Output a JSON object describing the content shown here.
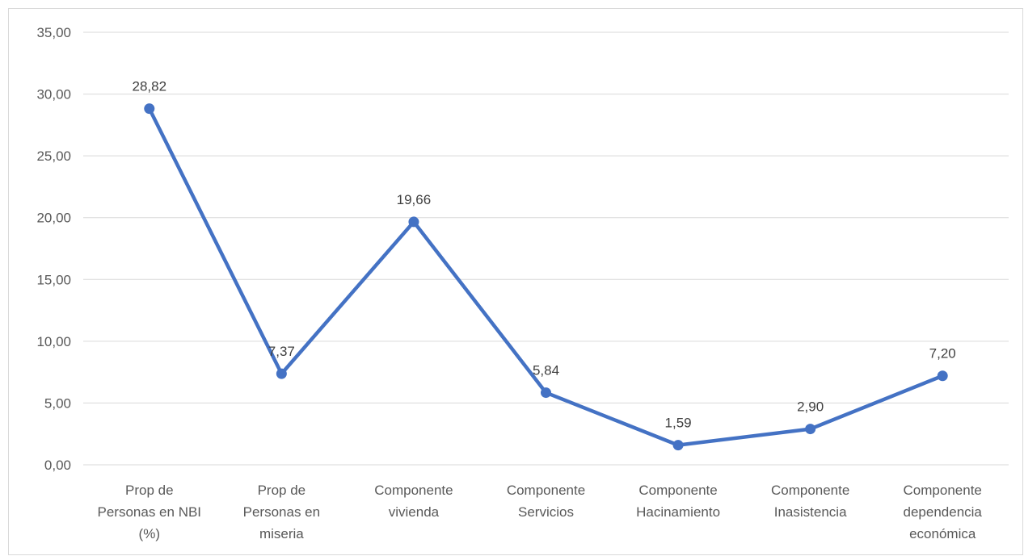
{
  "chart_data": {
    "type": "line",
    "title": "",
    "xlabel": "",
    "ylabel": "",
    "categories": [
      [
        "Prop de",
        "Personas en NBI",
        "(%)"
      ],
      [
        "Prop de",
        "Personas en",
        "miseria"
      ],
      [
        "Componente",
        "vivienda"
      ],
      [
        "Componente",
        "Servicios"
      ],
      [
        "Componente",
        "Hacinamiento"
      ],
      [
        "Componente",
        "Inasistencia"
      ],
      [
        "Componente",
        "dependencia",
        "económica"
      ]
    ],
    "series": [
      {
        "values": [
          28.82,
          7.37,
          19.66,
          5.84,
          1.59,
          2.9,
          7.2
        ],
        "data_labels": [
          "28,82",
          "7,37",
          "19,66",
          "5,84",
          "1,59",
          "2,90",
          "7,20"
        ],
        "color": "#4472c4"
      }
    ],
    "ylim": [
      0,
      35
    ],
    "yticks": [
      0,
      5,
      10,
      15,
      20,
      25,
      30,
      35
    ],
    "ytick_labels": [
      "0,00",
      "5,00",
      "10,00",
      "15,00",
      "20,00",
      "25,00",
      "30,00",
      "35,00"
    ],
    "grid": true,
    "legend": "none",
    "gridline_color": "#d9d9d9"
  }
}
